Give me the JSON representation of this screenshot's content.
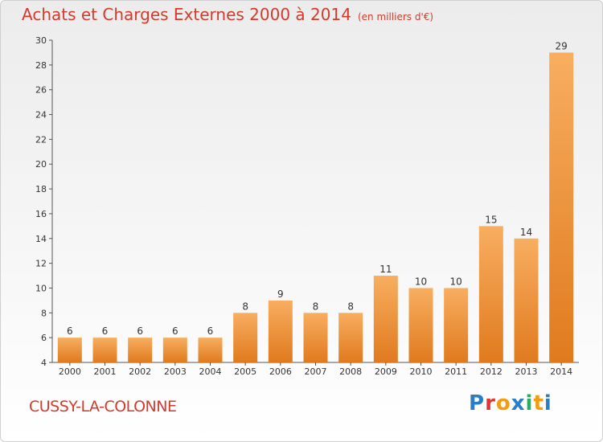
{
  "header": {
    "title": "Achats et Charges Externes 2000 à 2014",
    "unit": "(en milliers d'€)"
  },
  "footer": {
    "city": "CUSSY-LA-COLONNE",
    "logo": [
      "P",
      "r",
      "o",
      "x",
      "i",
      "t",
      "i"
    ]
  },
  "colors": {
    "title": "#d33a2c",
    "bar_light": "#f7a95a",
    "bar_dark": "#e07a1e",
    "logo": [
      "#2a7ec6",
      "#e3342f",
      "#f39c12",
      "#2a7ec6",
      "#27ae60",
      "#f39c12",
      "#2a7ec6"
    ]
  },
  "chart_data": {
    "type": "bar",
    "title": "Achats et Charges Externes 2000 à 2014",
    "categories": [
      "2000",
      "2001",
      "2002",
      "2003",
      "2004",
      "2005",
      "2006",
      "2007",
      "2008",
      "2009",
      "2010",
      "2011",
      "2012",
      "2013",
      "2014"
    ],
    "values": [
      6,
      6,
      6,
      6,
      6,
      8,
      9,
      8,
      8,
      11,
      10,
      10,
      15,
      14,
      29
    ],
    "ylim": [
      4,
      30
    ],
    "yticks": [
      4,
      6,
      8,
      10,
      12,
      14,
      16,
      18,
      20,
      22,
      24,
      26,
      28,
      30
    ],
    "grid": false,
    "data_labels": true
  }
}
